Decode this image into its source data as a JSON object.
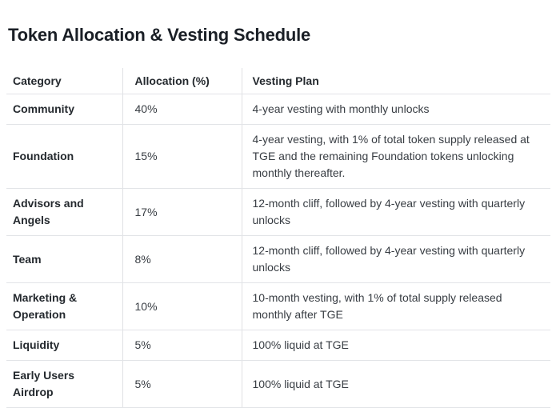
{
  "page": {
    "title": "Token Allocation & Vesting Schedule"
  },
  "table": {
    "columns": [
      "Category",
      "Allocation (%)",
      "Vesting Plan"
    ],
    "rows": [
      {
        "category": "Community",
        "allocation": "40%",
        "vesting": "4-year vesting with monthly unlocks"
      },
      {
        "category": "Foundation",
        "allocation": "15%",
        "vesting": "4-year vesting, with 1% of total token supply released at TGE and the remaining Foundation tokens unlocking monthly thereafter."
      },
      {
        "category": "Advisors and Angels",
        "allocation": "17%",
        "vesting": "12-month cliff, followed by 4-year vesting with quarterly unlocks"
      },
      {
        "category": "Team",
        "allocation": "8%",
        "vesting": "12-month cliff, followed by 4-year vesting with quarterly unlocks"
      },
      {
        "category": "Marketing & Operation",
        "allocation": "10%",
        "vesting": "10-month vesting, with 1% of total supply released monthly after TGE"
      },
      {
        "category": "Liquidity",
        "allocation": "5%",
        "vesting": "100% liquid at TGE"
      },
      {
        "category": "Early Users Airdrop",
        "allocation": "5%",
        "vesting": "100% liquid at TGE"
      }
    ]
  },
  "colors": {
    "title_text": "#1a1f26",
    "header_text": "#24292e",
    "body_text": "#383d43",
    "border": "#e2e4e7",
    "divider": "#dfe1e4",
    "background": "#ffffff"
  }
}
